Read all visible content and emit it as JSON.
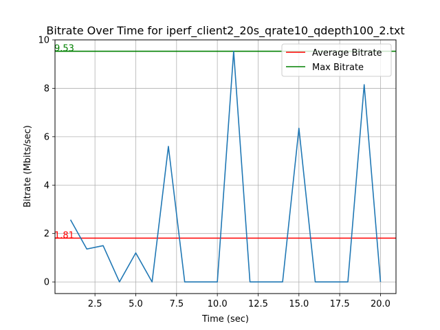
{
  "chart_data": {
    "type": "line",
    "title": "Bitrate Over Time for iperf_client2_20s_qrate10_qdepth100_2.txt",
    "xlabel": "Time (sec)",
    "ylabel": "Bitrate (Mbits/sec)",
    "xlim": [
      0.05,
      20.95
    ],
    "ylim": [
      -0.48,
      10.0
    ],
    "x_ticks": [
      2.5,
      5.0,
      7.5,
      10.0,
      12.5,
      15.0,
      17.5,
      20.0
    ],
    "x_tick_labels": [
      "2.5",
      "5.0",
      "7.5",
      "10.0",
      "12.5",
      "15.0",
      "17.5",
      "20.0"
    ],
    "y_ticks": [
      0,
      2,
      4,
      6,
      8,
      10
    ],
    "y_tick_labels": [
      "0",
      "2",
      "4",
      "6",
      "8",
      "10"
    ],
    "grid": true,
    "legend_position": "top-right",
    "series": [
      {
        "x": [
          1,
          2,
          3,
          4,
          5,
          6,
          7,
          8,
          9,
          10,
          11,
          12,
          13,
          14,
          15,
          16,
          17,
          18,
          19,
          20
        ],
        "values": [
          2.57,
          1.36,
          1.5,
          0.0,
          1.2,
          0.0,
          5.6,
          0.0,
          0.0,
          0.0,
          9.53,
          0.0,
          0.0,
          0.0,
          6.35,
          0.0,
          0.0,
          0.0,
          8.15,
          0.0
        ],
        "color": "#1f77b4"
      }
    ],
    "reference_lines": [
      {
        "name": "Average Bitrate",
        "value": 1.81,
        "label": "1.81",
        "color": "#ff0000"
      },
      {
        "name": "Max Bitrate",
        "value": 9.53,
        "label": "9.53",
        "color": "#008000"
      }
    ]
  }
}
